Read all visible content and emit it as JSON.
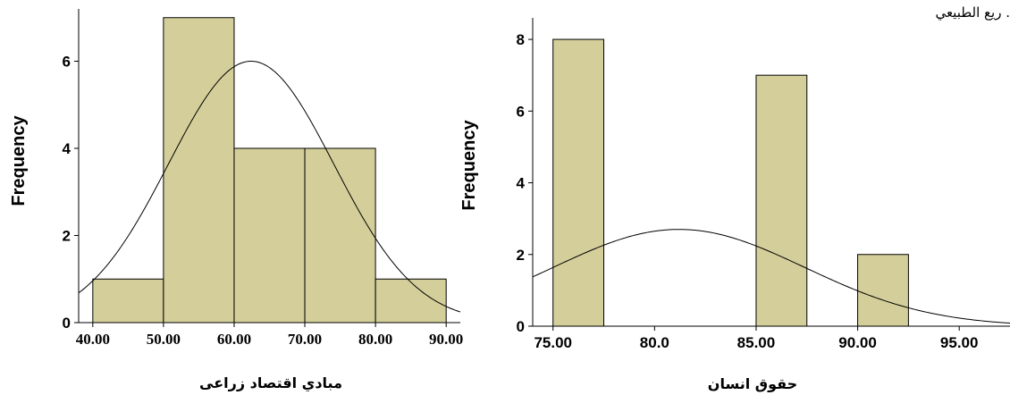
{
  "corner_text": "ريع الطبيعي .",
  "chart_data": [
    {
      "type": "bar",
      "subtype": "histogram",
      "title": "",
      "xlabel": "مبادي اقتصاد زراعى",
      "ylabel": "Frequency",
      "bins": [
        [
          40,
          50
        ],
        [
          50,
          60
        ],
        [
          60,
          70
        ],
        [
          70,
          80
        ],
        [
          80,
          90
        ]
      ],
      "values": [
        1,
        7,
        4,
        4,
        1
      ],
      "xlim": [
        38,
        92
      ],
      "ylim": [
        0,
        7.2
      ],
      "x_ticks": [
        "40.00",
        "50.00",
        "60.00",
        "70.00",
        "80.00",
        "90.00"
      ],
      "y_ticks": [
        "0",
        "2",
        "4",
        "6"
      ],
      "normal_curve": {
        "mean": 62.4,
        "sd": 11.7,
        "peak_frequency": 6.0
      },
      "bar_color": "#d4cf9a",
      "grid": false
    },
    {
      "type": "bar",
      "subtype": "histogram",
      "title": "",
      "xlabel": "حقوق انسان",
      "ylabel": "Frequency",
      "bins": [
        [
          75,
          77.5
        ],
        [
          85,
          87.5
        ],
        [
          90,
          92.5
        ]
      ],
      "values": [
        8,
        7,
        2
      ],
      "xlim": [
        74,
        97.5
      ],
      "ylim": [
        0,
        8.6
      ],
      "x_ticks": [
        "75.00",
        "80.0",
        "85.00",
        "90.00",
        "95.00"
      ],
      "x_tick_values": [
        75,
        80,
        85,
        90,
        95
      ],
      "y_ticks": [
        "0",
        "2",
        "4",
        "6",
        "8"
      ],
      "normal_curve": {
        "mean": 81.2,
        "sd": 6.2,
        "peak_frequency": 2.7
      },
      "bar_color": "#d4cf9a",
      "grid": false
    }
  ]
}
